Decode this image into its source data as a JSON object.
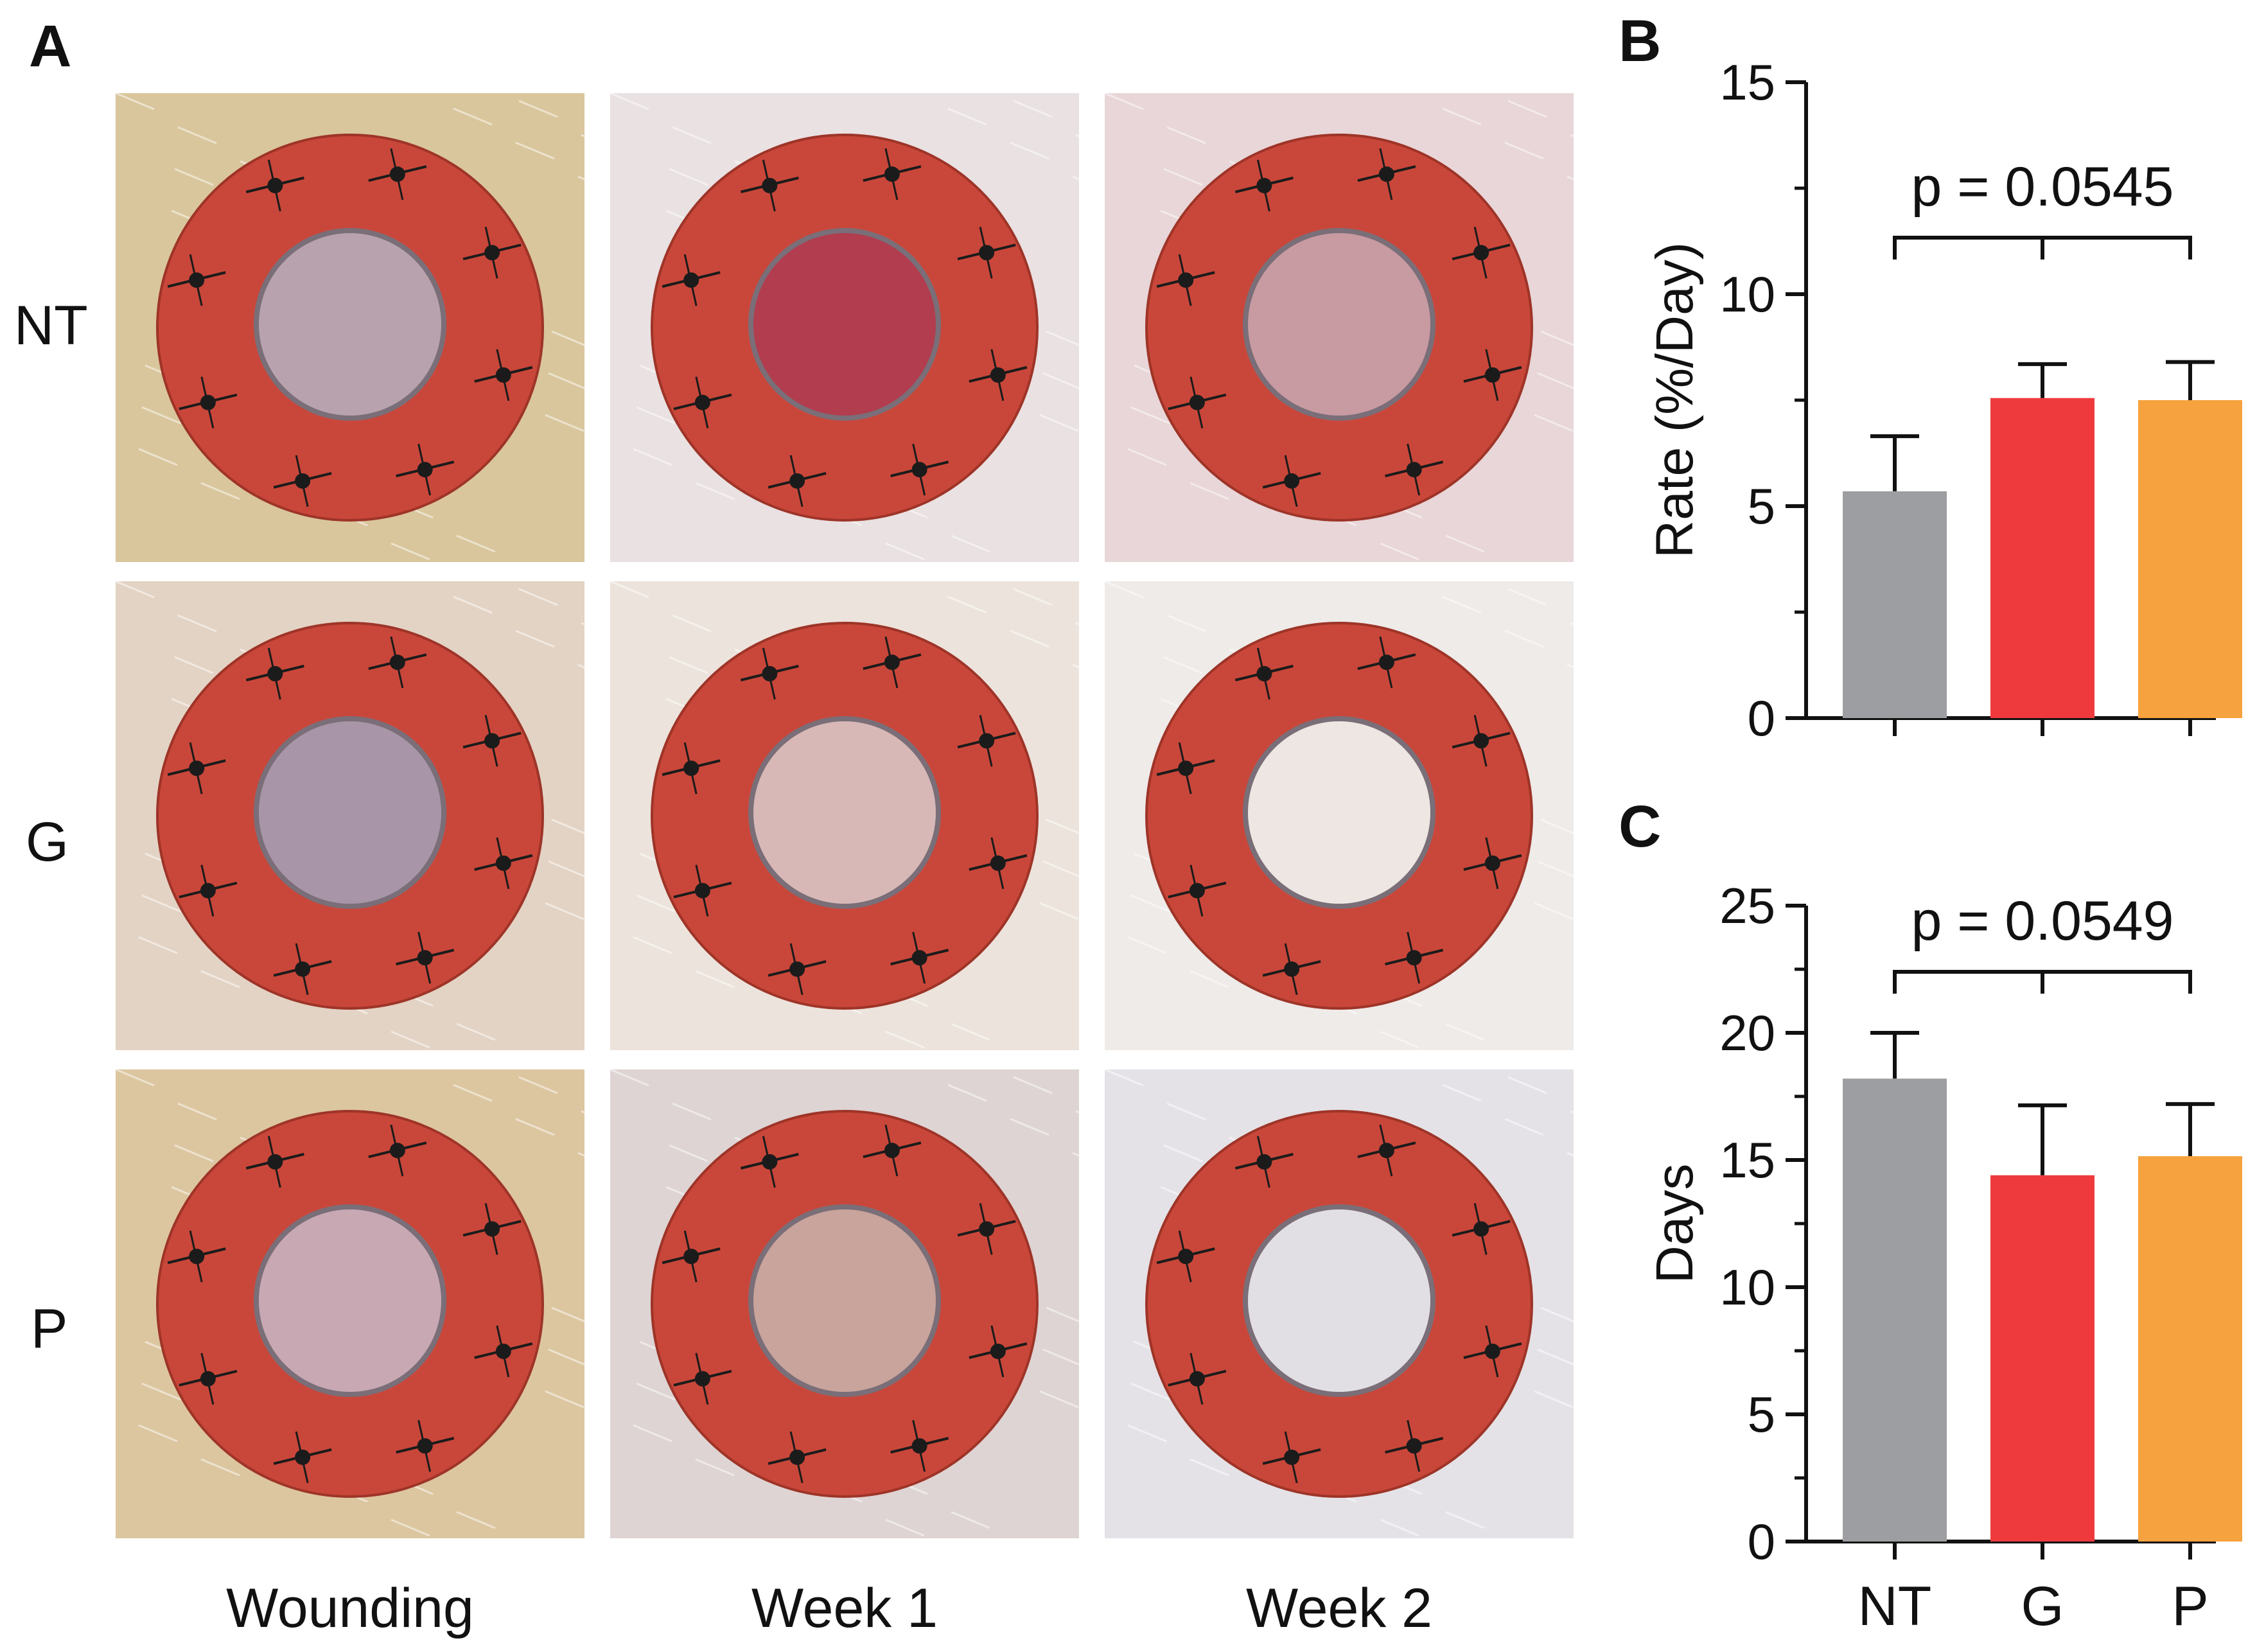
{
  "panel_a": {
    "label": "A",
    "rows": [
      "NT",
      "G",
      "P"
    ],
    "columns": [
      "Wounding",
      "Week 1",
      "Week 2"
    ],
    "colors": {
      "ring": "#c9473a",
      "skin": "#e8dccd",
      "wound_open": "#b24b55"
    }
  },
  "chart_data": [
    {
      "id": "B",
      "type": "bar",
      "panel_label": "B",
      "categories": [
        "NT",
        "G",
        "P"
      ],
      "values": [
        5.35,
        7.55,
        7.5
      ],
      "errors": [
        1.3,
        0.8,
        0.9
      ],
      "colors": [
        "#9d9ea2",
        "#ef3a3d",
        "#f6a23f"
      ],
      "ylabel": "Rate  (%/Day)",
      "ylim": [
        0,
        15
      ],
      "yticks": [
        "0",
        "5",
        "10",
        "15"
      ],
      "annotation": "p = 0.0545"
    },
    {
      "id": "C",
      "type": "bar",
      "panel_label": "C",
      "categories": [
        "NT",
        "G",
        "P"
      ],
      "values": [
        18.2,
        14.4,
        15.15
      ],
      "errors": [
        1.8,
        2.75,
        2.05
      ],
      "colors": [
        "#9d9ea2",
        "#ef3a3d",
        "#f6a23f"
      ],
      "ylabel": "Days",
      "ylim": [
        0,
        25
      ],
      "yticks": [
        "0",
        "5",
        "10",
        "15",
        "20",
        "25"
      ],
      "xticks": [
        "NT",
        "G",
        "P"
      ],
      "annotation": "p = 0.0549"
    }
  ]
}
